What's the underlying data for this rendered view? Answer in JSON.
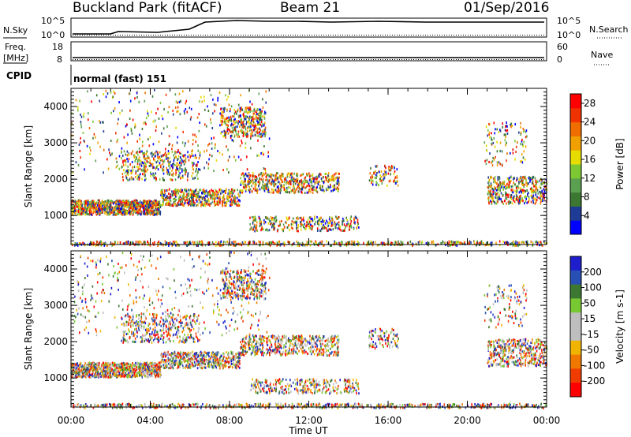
{
  "header": {
    "station": "Buckland Park (fitACF)",
    "beam": "Beam 21",
    "date": "01/Sep/2016"
  },
  "info_panels": {
    "nsky_label": "N.Sky",
    "nsky_ticks": [
      "10^5",
      "10^0"
    ],
    "nsearch_label": "N.Search",
    "nsearch_ticks": [
      "10^5",
      "10^0"
    ],
    "freq_label": "Freq.",
    "freq_unit": "[MHz]",
    "freq_ticks": [
      "18",
      "8"
    ],
    "nave_label": "Nave",
    "nave_ticks": [
      "60",
      "0"
    ],
    "cpid_label": "CPID",
    "cpid_value": "normal (fast) 151"
  },
  "colors": {
    "power_scale": [
      "#0000ff",
      "#1e3c96",
      "#3c7832",
      "#5aa050",
      "#7dc832",
      "#e6dc00",
      "#f0a000",
      "#f06e00",
      "#f03200",
      "#ff0000"
    ],
    "velocity_scale": [
      "#1e1ecd",
      "#2850b4",
      "#3c7832",
      "#78c832",
      "#bebebe",
      "#bebebe",
      "#f0b400",
      "#f07800",
      "#f03c00",
      "#ff0000"
    ]
  },
  "chart_data": [
    {
      "type": "heatmap",
      "title": "Power",
      "xlabel": "Time UT",
      "ylabel": "Slant Range [km]",
      "x_ticks": [
        "00:00",
        "04:00",
        "08:00",
        "12:00",
        "16:00",
        "20:00",
        "00:00"
      ],
      "y_ticks": [
        1000,
        2000,
        3000,
        4000
      ],
      "xlim": [
        0,
        24
      ],
      "ylim": [
        200,
        4500
      ],
      "colorbar": {
        "label": "Power [dB]",
        "ticks": [
          4,
          8,
          12,
          16,
          20,
          24,
          28
        ],
        "range": [
          0,
          30
        ]
      }
    },
    {
      "type": "heatmap",
      "title": "Velocity",
      "xlabel": "Time UT",
      "ylabel": "Slant Range [km]",
      "x_ticks": [
        "00:00",
        "04:00",
        "08:00",
        "12:00",
        "16:00",
        "20:00",
        "00:00"
      ],
      "y_ticks": [
        1000,
        2000,
        3000,
        4000
      ],
      "xlim": [
        0,
        24
      ],
      "ylim": [
        200,
        4500
      ],
      "colorbar": {
        "label": "Velocity [m s-1]",
        "ticks": [
          200,
          100,
          50,
          15,
          -15,
          -50,
          -100,
          -200
        ],
        "range": [
          -250,
          250
        ]
      }
    }
  ]
}
